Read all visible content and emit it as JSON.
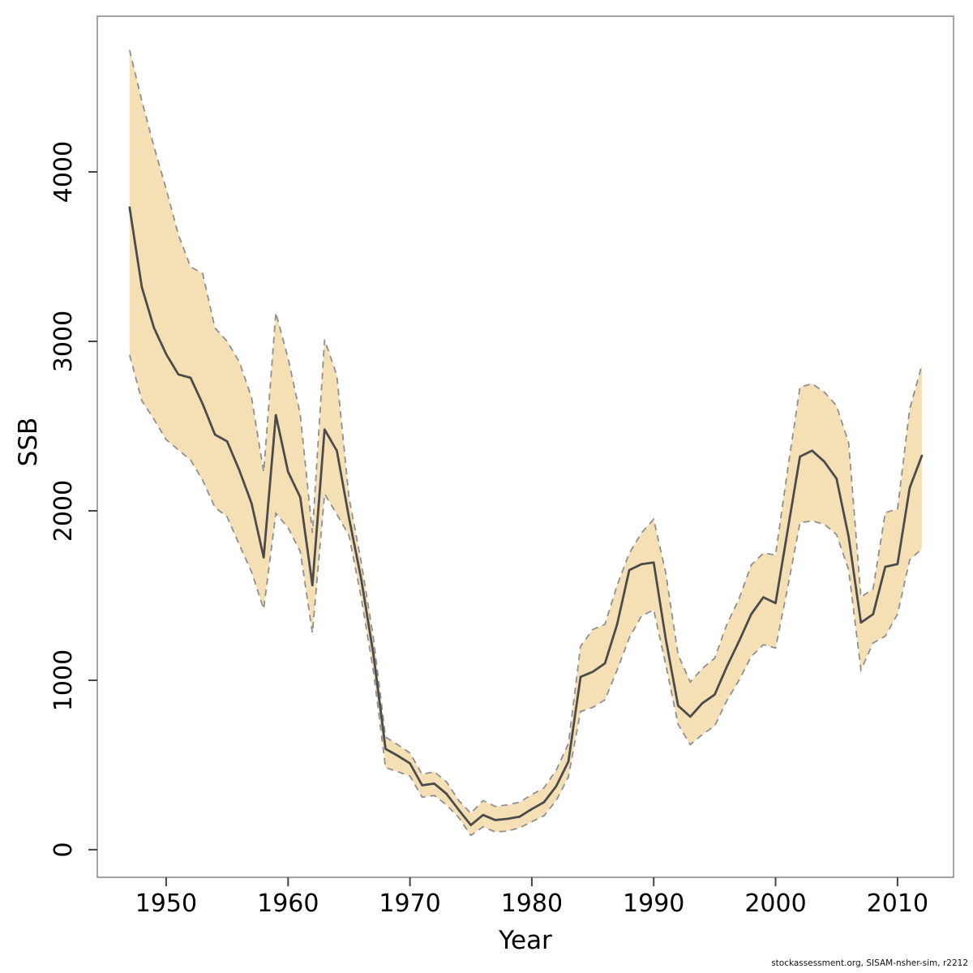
{
  "figure": {
    "attribution": "stockassessment.org, SISAM-nsher-sim, r2212"
  },
  "chart_data": {
    "type": "line",
    "title": "",
    "xlabel": "Year",
    "ylabel": "SSB",
    "grid": false,
    "legend": "none",
    "xlim": [
      1944.35,
      2014.6
    ],
    "ylim": [
      -163,
      4919
    ],
    "x_ticks": [
      1950,
      1960,
      1970,
      1980,
      1990,
      2000,
      2010
    ],
    "y_ticks": [
      0,
      1000,
      2000,
      3000,
      4000
    ],
    "band_color": "#f5dfb4",
    "band_edge_color": "#8f8f8f",
    "line_color": "#4b4b4b",
    "box_color": "#8c8c8c",
    "tick_color": "#444444",
    "x": [
      1947,
      1948,
      1949,
      1950,
      1951,
      1952,
      1953,
      1954,
      1955,
      1956,
      1957,
      1958,
      1959,
      1960,
      1961,
      1962,
      1963,
      1964,
      1965,
      1966,
      1967,
      1968,
      1969,
      1970,
      1971,
      1972,
      1973,
      1974,
      1975,
      1976,
      1977,
      1978,
      1979,
      1980,
      1981,
      1982,
      1983,
      1984,
      1985,
      1986,
      1987,
      1988,
      1989,
      1990,
      1991,
      1992,
      1993,
      1994,
      1995,
      1996,
      1997,
      1998,
      1999,
      2000,
      2001,
      2002,
      2003,
      2004,
      2005,
      2006,
      2007,
      2008,
      2009,
      2010,
      2011,
      2012
    ],
    "series": [
      {
        "name": "SSB estimate",
        "values": [
          3790,
          3320,
          3080,
          2925,
          2805,
          2785,
          2630,
          2450,
          2410,
          2240,
          2045,
          1725,
          2565,
          2230,
          2080,
          1560,
          2480,
          2355,
          1960,
          1600,
          1155,
          595,
          555,
          510,
          380,
          390,
          330,
          235,
          145,
          205,
          175,
          182,
          195,
          240,
          280,
          375,
          520,
          1020,
          1050,
          1100,
          1330,
          1650,
          1685,
          1695,
          1240,
          850,
          785,
          865,
          915,
          1080,
          1230,
          1390,
          1490,
          1455,
          1890,
          2320,
          2355,
          2290,
          2190,
          1845,
          1340,
          1390,
          1670,
          1685,
          2135,
          2325
        ]
      },
      {
        "name": "95% CI lower",
        "values": [
          2920,
          2650,
          2540,
          2420,
          2360,
          2300,
          2180,
          2020,
          1965,
          1800,
          1640,
          1420,
          1985,
          1900,
          1760,
          1280,
          2100,
          1980,
          1855,
          1490,
          1055,
          485,
          460,
          435,
          310,
          320,
          265,
          190,
          85,
          135,
          105,
          110,
          130,
          165,
          200,
          290,
          430,
          815,
          840,
          885,
          1060,
          1250,
          1380,
          1415,
          1090,
          740,
          620,
          680,
          730,
          880,
          1000,
          1140,
          1210,
          1190,
          1550,
          1930,
          1940,
          1920,
          1860,
          1650,
          1060,
          1220,
          1260,
          1390,
          1710,
          1775
        ]
      },
      {
        "name": "95% CI upper",
        "values": [
          4720,
          4420,
          4150,
          3900,
          3630,
          3440,
          3400,
          3080,
          3000,
          2880,
          2670,
          2230,
          3170,
          2900,
          2570,
          1870,
          3010,
          2800,
          2080,
          1700,
          1250,
          665,
          620,
          570,
          445,
          460,
          400,
          290,
          215,
          290,
          255,
          265,
          280,
          325,
          365,
          470,
          625,
          1200,
          1300,
          1330,
          1560,
          1750,
          1870,
          1950,
          1630,
          1150,
          990,
          1070,
          1130,
          1330,
          1480,
          1680,
          1750,
          1740,
          2250,
          2730,
          2750,
          2700,
          2620,
          2400,
          1490,
          1540,
          1990,
          2010,
          2600,
          2860
        ]
      }
    ]
  }
}
